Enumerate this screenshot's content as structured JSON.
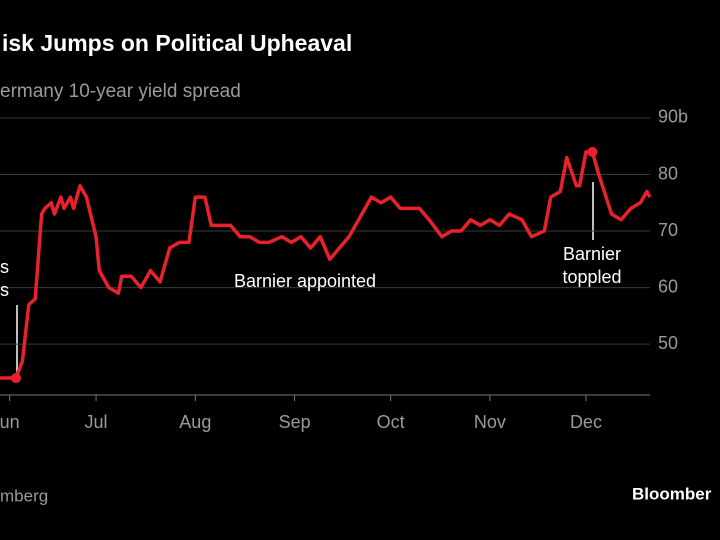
{
  "chart_data": {
    "type": "line",
    "title": "isk Jumps on Political Upheaval",
    "subtitle": "ermany 10-year yield spread",
    "source": "mberg",
    "logo": "Bloomber",
    "annotations": [
      {
        "lines": [
          "s",
          "s"
        ]
      },
      {
        "lines": [
          "Barnier appointed"
        ]
      },
      {
        "lines": [
          "Barnier",
          "toppled"
        ]
      }
    ],
    "x": [
      0,
      3,
      5,
      7,
      9,
      11,
      13,
      14,
      16,
      17,
      19,
      20,
      22,
      23,
      25,
      27,
      30,
      31,
      34,
      37,
      38,
      41,
      44,
      47,
      50,
      53,
      56,
      59,
      61,
      64,
      66,
      72,
      75,
      78,
      81,
      84,
      88,
      91,
      94,
      97,
      100,
      103,
      106,
      109,
      113,
      116,
      119,
      122,
      125,
      128,
      131,
      134,
      138,
      141,
      144,
      147,
      150,
      153,
      156,
      159,
      163,
      166,
      170,
      172,
      175,
      177,
      180,
      181,
      183,
      185,
      187,
      191,
      194,
      197,
      200,
      202,
      203
    ],
    "series": [
      {
        "name": "spread",
        "color": "#e8212c",
        "values": [
          44,
          44,
          44,
          47,
          57,
          58,
          73,
          74,
          75,
          73,
          76,
          74,
          76,
          74,
          78,
          76,
          69,
          63,
          60,
          59,
          62,
          62,
          60,
          63,
          61,
          67,
          68,
          68,
          76,
          76,
          71,
          71,
          69,
          69,
          68,
          68,
          69,
          68,
          69,
          67,
          69,
          65,
          67,
          69,
          73,
          76,
          75,
          76,
          74,
          74,
          74,
          72,
          69,
          70,
          70,
          72,
          71,
          72,
          71,
          73,
          72,
          69,
          70,
          76,
          77,
          83,
          78,
          78,
          84,
          84,
          80,
          73,
          72,
          74,
          75,
          77,
          76
        ]
      }
    ],
    "xlim": [
      0,
      203
    ],
    "xticks": [
      {
        "value": 3,
        "label": "un"
      },
      {
        "value": 30,
        "label": "Jul"
      },
      {
        "value": 61,
        "label": "Aug"
      },
      {
        "value": 92,
        "label": "Sep"
      },
      {
        "value": 122,
        "label": "Oct"
      },
      {
        "value": 153,
        "label": "Nov"
      },
      {
        "value": 183,
        "label": "Dec"
      }
    ],
    "ylim": [
      41,
      93
    ],
    "yticks": [
      50,
      60,
      70,
      80,
      {
        "value": 90,
        "label": "90b"
      }
    ],
    "grid": true
  }
}
